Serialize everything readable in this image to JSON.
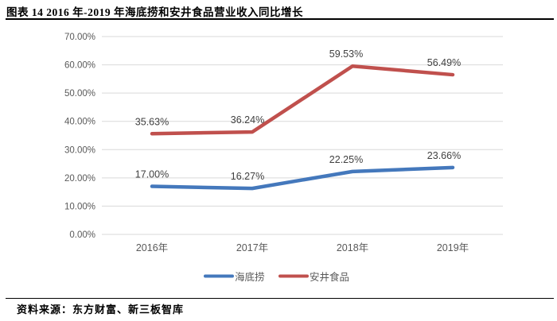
{
  "header": {
    "title": "图表 14 2016 年-2019 年海底捞和安井食品营业收入同比增长"
  },
  "footer": {
    "source": "资料来源：东方财富、新三板智库"
  },
  "chart_data": {
    "type": "line",
    "title": "2016年-2019年海底捞和安井食品营业收入同比增长",
    "categories": [
      "2016年",
      "2017年",
      "2018年",
      "2019年"
    ],
    "series": [
      {
        "name": "海底捞",
        "color": "#4478BC",
        "values": [
          17.0,
          16.27,
          22.25,
          23.66
        ],
        "labels": [
          "17.00%",
          "16.27%",
          "22.25%",
          "23.66%"
        ]
      },
      {
        "name": "安井食品",
        "color": "#C0504D",
        "values": [
          35.63,
          36.24,
          59.53,
          56.49
        ],
        "labels": [
          "35.63%",
          "36.24%",
          "59.53%",
          "56.49%"
        ]
      }
    ],
    "xlabel": "",
    "ylabel": "",
    "y_axis": {
      "min": 0,
      "max": 70,
      "step": 10,
      "tick_labels": [
        "0.00%",
        "10.00%",
        "20.00%",
        "30.00%",
        "40.00%",
        "50.00%",
        "60.00%",
        "70.00%"
      ]
    },
    "grid": true,
    "legend_position": "bottom",
    "colors": {
      "grid": "#D9D9D9",
      "axis_text": "#595959",
      "data_label": "#404040",
      "legend_text": "#595959"
    }
  }
}
